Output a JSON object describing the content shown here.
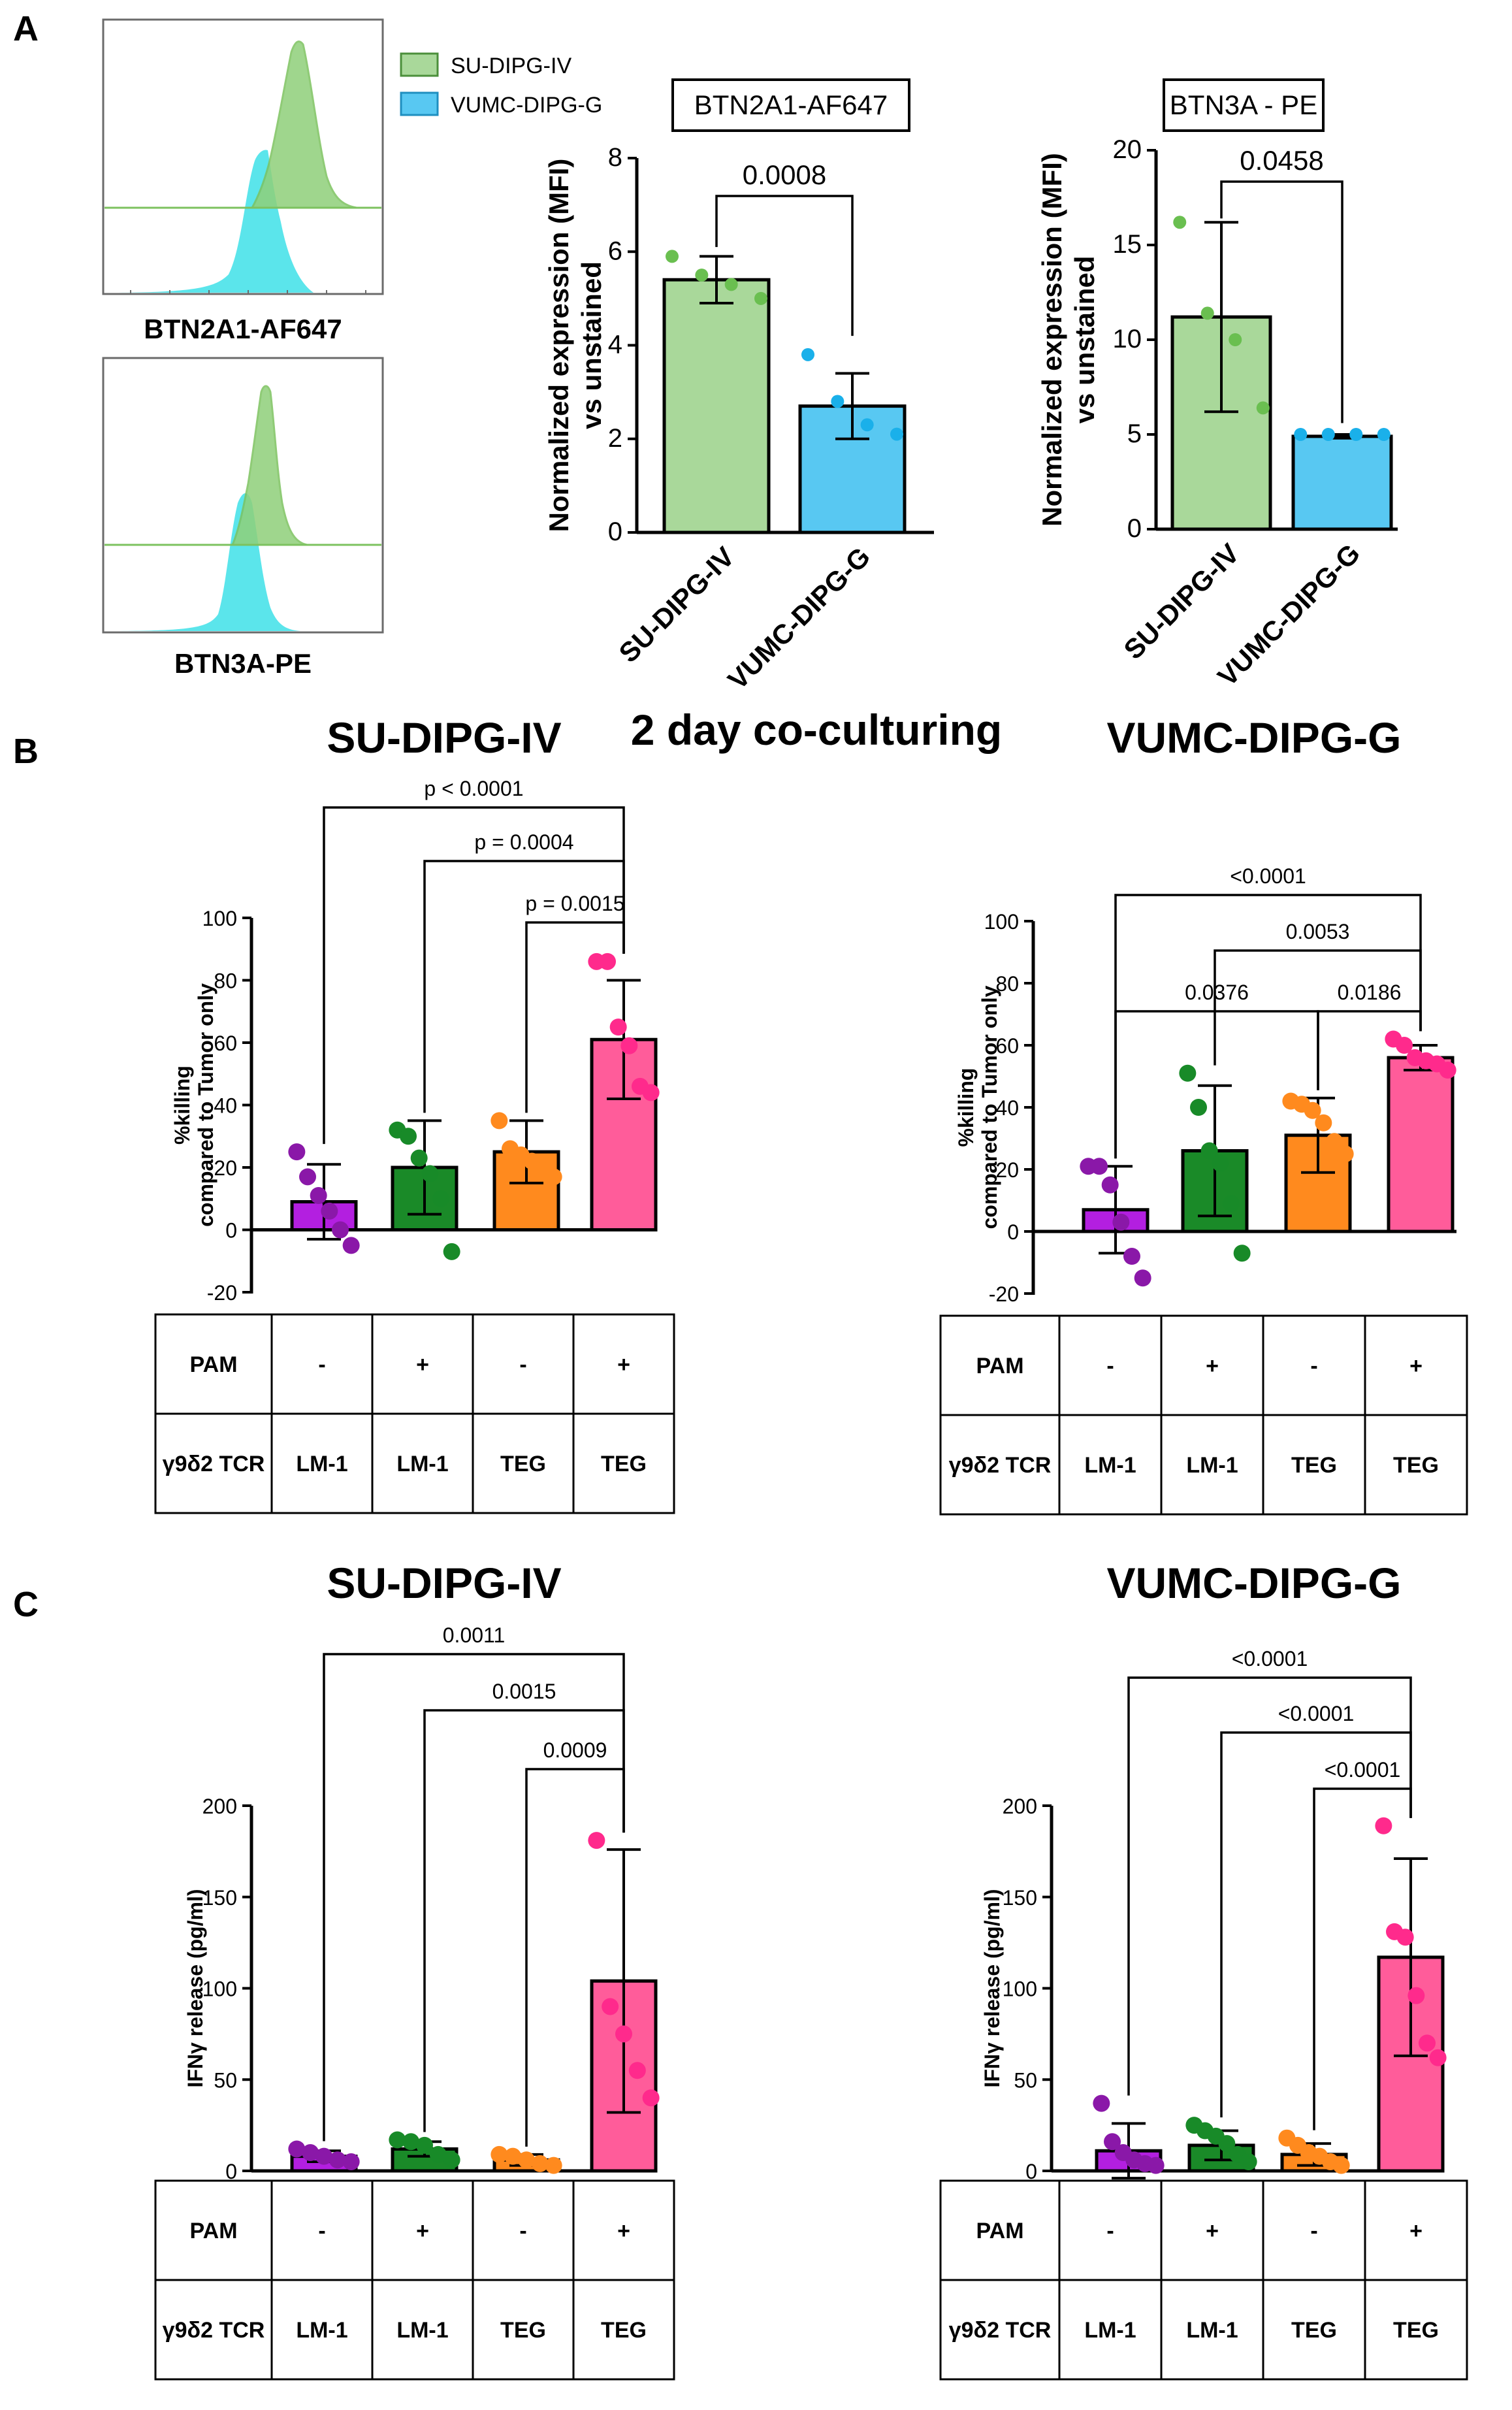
{
  "colors": {
    "green_light": "#a9d89a",
    "blue_light": "#58c8f2",
    "purple": "#b31fe0",
    "dark_green": "#1a8a28",
    "orange": "#ff8a1e",
    "pink": "#ff5c9a",
    "purple_dot": "#8a18a8",
    "green_dot": "#188a28",
    "orange_dot": "#ff8a1e",
    "pink_dot": "#ff2a8c",
    "green_dotA": "#6abf50",
    "blue_dotA": "#1ab0ea",
    "cyan_hist": "#3ee0e8",
    "green_hist": "#8fd07a"
  },
  "panel_labels": {
    "a": "A",
    "b": "B",
    "c": "C"
  },
  "flow": {
    "legend": [
      "SU-DIPG-IV",
      "VUMC-DIPG-G"
    ],
    "top_xlabel": "BTN2A1-AF647",
    "bottom_xlabel": "BTN3A-PE"
  },
  "section_b": {
    "subtitle": "2 day co-culturing",
    "left_title": "SU-DIPG-IV",
    "right_title": "VUMC-DIPG-G"
  },
  "section_c": {
    "left_title": "SU-DIPG-IV",
    "right_title": "VUMC-DIPG-G"
  },
  "table": {
    "row_labels": [
      "PAM",
      "γ9δ2 TCR"
    ],
    "pam": [
      "-",
      "+",
      "-",
      "+"
    ],
    "tcr": [
      "LM-1",
      "LM-1",
      "TEG",
      "TEG"
    ]
  },
  "chart_data": [
    {
      "id": "a1",
      "type": "bar",
      "title": "BTN2A1-AF647",
      "categories": [
        "SU-DIPG-IV",
        "VUMC-DIPG-G"
      ],
      "values": [
        5.4,
        2.7
      ],
      "errors": [
        0.5,
        0.7
      ],
      "points": [
        [
          5.9,
          5.5,
          5.3,
          5.0
        ],
        [
          3.8,
          2.8,
          2.3,
          2.1
        ]
      ],
      "ylabel": "Normalized expression (MFI) vs unstained",
      "ylim": [
        0,
        8
      ],
      "yticks": [
        0,
        2,
        4,
        6,
        8
      ],
      "comparisons": [
        {
          "from": 0,
          "to": 1,
          "label": "0.0008"
        }
      ]
    },
    {
      "id": "a2",
      "type": "bar",
      "title": "BTN3A - PE",
      "categories": [
        "SU-DIPG-IV",
        "VUMC-DIPG-G"
      ],
      "values": [
        11.2,
        4.9
      ],
      "errors": [
        5.0,
        0.1
      ],
      "points": [
        [
          16.2,
          11.4,
          10.0,
          6.4
        ],
        [
          5.0,
          5.0,
          5.0,
          5.0
        ]
      ],
      "ylabel": "Normalized expression (MFI) vs unstained",
      "ylim": [
        0,
        20
      ],
      "yticks": [
        0,
        5,
        10,
        15,
        20
      ],
      "comparisons": [
        {
          "from": 0,
          "to": 1,
          "label": "0.0458"
        }
      ]
    },
    {
      "id": "b1",
      "type": "bar",
      "title": "SU-DIPG-IV",
      "categories": [
        "PAM - / LM-1",
        "PAM + / LM-1",
        "PAM - / TEG",
        "PAM + / TEG"
      ],
      "values": [
        9,
        20,
        25,
        61
      ],
      "errors": [
        12,
        15,
        10,
        19
      ],
      "points": [
        [
          25,
          17,
          11,
          6,
          0,
          -5
        ],
        [
          32,
          30,
          23,
          18,
          10,
          -7
        ],
        [
          35,
          26,
          24,
          22,
          19,
          17
        ],
        [
          86,
          86,
          65,
          59,
          46,
          44
        ]
      ],
      "ylabel": "%killing compared to Tumor only",
      "ylim": [
        -20,
        100
      ],
      "yticks": [
        -20,
        0,
        20,
        40,
        60,
        80,
        100
      ],
      "comparisons": [
        {
          "from": 0,
          "to": 3,
          "label": "p < 0.0001"
        },
        {
          "from": 1,
          "to": 3,
          "label": "p = 0.0004"
        },
        {
          "from": 2,
          "to": 3,
          "label": "p = 0.0015"
        }
      ]
    },
    {
      "id": "b2",
      "type": "bar",
      "title": "VUMC-DIPG-G",
      "categories": [
        "PAM - / LM-1",
        "PAM + / LM-1",
        "PAM - / TEG",
        "PAM + / TEG"
      ],
      "values": [
        7,
        26,
        31,
        56
      ],
      "errors": [
        14,
        21,
        12,
        4
      ],
      "points": [
        [
          21,
          21,
          15,
          3,
          -8,
          -15
        ],
        [
          51,
          40,
          26,
          22,
          9,
          -7
        ],
        [
          42,
          41,
          39,
          35,
          29,
          25
        ],
        [
          62,
          60,
          56,
          55,
          54,
          52
        ]
      ],
      "ylabel": "%killing compared to Tumor only",
      "ylim": [
        -20,
        100
      ],
      "yticks": [
        -20,
        0,
        20,
        40,
        60,
        80,
        100
      ],
      "comparisons": [
        {
          "from": 0,
          "to": 3,
          "label": "<0.0001"
        },
        {
          "from": 1,
          "to": 3,
          "label": "0.0053"
        },
        {
          "from": 0,
          "to": 2,
          "label": "0.0376"
        },
        {
          "from": 2,
          "to": 3,
          "label": "0.0186"
        }
      ]
    },
    {
      "id": "c1",
      "type": "bar",
      "title": "SU-DIPG-IV",
      "categories": [
        "PAM - / LM-1",
        "PAM + / LM-1",
        "PAM - / TEG",
        "PAM + / TEG"
      ],
      "values": [
        8,
        12,
        6,
        104
      ],
      "errors": [
        3,
        4,
        3,
        72
      ],
      "points": [
        [
          12,
          10,
          8,
          6,
          5
        ],
        [
          17,
          16,
          14,
          9,
          6
        ],
        [
          9,
          8,
          6,
          4,
          3
        ],
        [
          181,
          90,
          75,
          55,
          40
        ]
      ],
      "ylabel": "IFNγ release (pg/ml)",
      "ylim": [
        0,
        200
      ],
      "yticks": [
        0,
        50,
        100,
        150,
        200
      ],
      "comparisons": [
        {
          "from": 0,
          "to": 3,
          "label": "0.0011"
        },
        {
          "from": 1,
          "to": 3,
          "label": "0.0015"
        },
        {
          "from": 2,
          "to": 3,
          "label": "0.0009"
        }
      ]
    },
    {
      "id": "c2",
      "type": "bar",
      "title": "VUMC-DIPG-G",
      "categories": [
        "PAM - / LM-1",
        "PAM + / LM-1",
        "PAM - / TEG",
        "PAM + / TEG"
      ],
      "values": [
        11,
        14,
        9,
        117
      ],
      "errors": [
        15,
        8,
        6,
        54
      ],
      "points": [
        [
          37,
          16,
          10,
          6,
          4,
          3
        ],
        [
          25,
          22,
          19,
          15,
          9,
          5
        ],
        [
          18,
          14,
          10,
          8,
          5,
          3
        ],
        [
          189,
          131,
          128,
          96,
          70,
          62
        ]
      ],
      "ylabel": "IFNγ release (pg/ml)",
      "ylim": [
        0,
        200
      ],
      "yticks": [
        0,
        50,
        100,
        150,
        200
      ],
      "comparisons": [
        {
          "from": 0,
          "to": 3,
          "label": "<0.0001"
        },
        {
          "from": 1,
          "to": 3,
          "label": "<0.0001"
        },
        {
          "from": 2,
          "to": 3,
          "label": "<0.0001"
        }
      ]
    }
  ]
}
